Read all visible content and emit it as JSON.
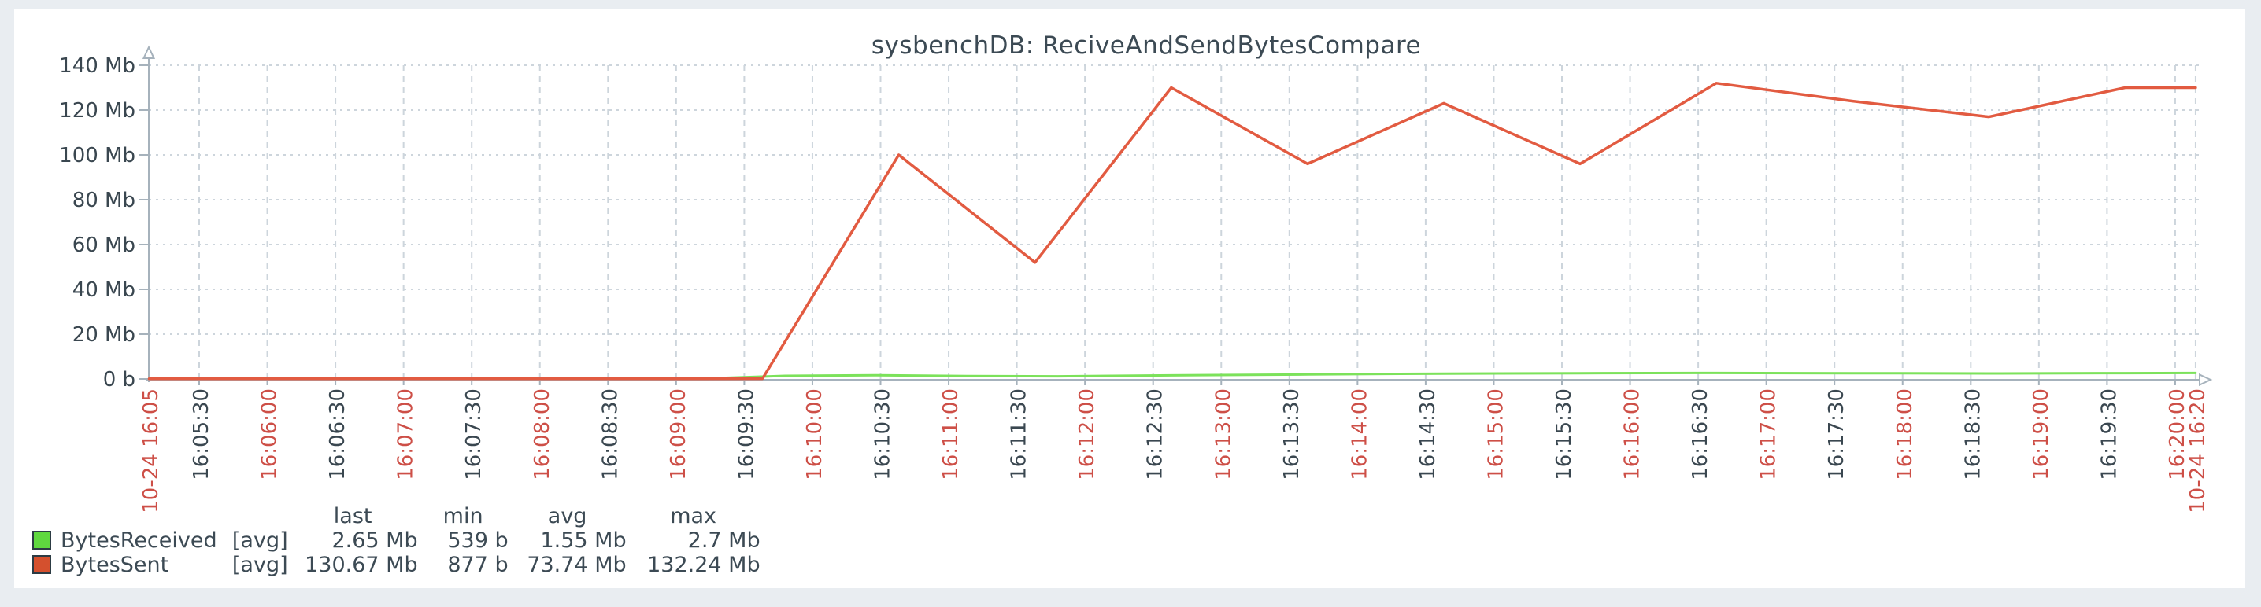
{
  "colors": {
    "page_bg": "#e9edf1",
    "panel_bg": "#ffffff",
    "grid": "#cdd5dc",
    "axis": "#a6b2bc",
    "tick_red": "#cd4f47",
    "tick_dark": "#3a4750",
    "text": "#3c4a54"
  },
  "chart_data": {
    "type": "line",
    "title": "sysbenchDB: ReciveAndSendBytesCompare",
    "ylabel": "",
    "xlabel": "",
    "unit": "Mb",
    "ylim": [
      0,
      140
    ],
    "y_tick_step": 20,
    "grid": true,
    "legend_position": "bottom-left",
    "y_ticks": [
      {
        "v": 140,
        "label": "140 Mb"
      },
      {
        "v": 120,
        "label": "120 Mb"
      },
      {
        "v": 100,
        "label": "100 Mb"
      },
      {
        "v": 80,
        "label": "80 Mb"
      },
      {
        "v": 60,
        "label": "60 Mb"
      },
      {
        "v": 40,
        "label": "40 Mb"
      },
      {
        "v": 20,
        "label": "20 Mb"
      },
      {
        "v": 0,
        "label": "0 b"
      }
    ],
    "x_axis": {
      "start_label": {
        "label": "10-24 16:05",
        "color": "red"
      },
      "end_label": {
        "label": "10-24 16:20",
        "color": "red",
        "t": 909
      },
      "ticks": [
        {
          "t": 30,
          "label": "16:05:30",
          "color": "dark"
        },
        {
          "t": 60,
          "label": "16:06:00",
          "color": "red"
        },
        {
          "t": 90,
          "label": "16:06:30",
          "color": "dark"
        },
        {
          "t": 120,
          "label": "16:07:00",
          "color": "red"
        },
        {
          "t": 150,
          "label": "16:07:30",
          "color": "dark"
        },
        {
          "t": 180,
          "label": "16:08:00",
          "color": "red"
        },
        {
          "t": 210,
          "label": "16:08:30",
          "color": "dark"
        },
        {
          "t": 240,
          "label": "16:09:00",
          "color": "red"
        },
        {
          "t": 270,
          "label": "16:09:30",
          "color": "dark"
        },
        {
          "t": 300,
          "label": "16:10:00",
          "color": "red"
        },
        {
          "t": 330,
          "label": "16:10:30",
          "color": "dark"
        },
        {
          "t": 360,
          "label": "16:11:00",
          "color": "red"
        },
        {
          "t": 390,
          "label": "16:11:30",
          "color": "dark"
        },
        {
          "t": 420,
          "label": "16:12:00",
          "color": "red"
        },
        {
          "t": 450,
          "label": "16:12:30",
          "color": "dark"
        },
        {
          "t": 480,
          "label": "16:13:00",
          "color": "red"
        },
        {
          "t": 510,
          "label": "16:13:30",
          "color": "dark"
        },
        {
          "t": 540,
          "label": "16:14:00",
          "color": "red"
        },
        {
          "t": 570,
          "label": "16:14:30",
          "color": "dark"
        },
        {
          "t": 600,
          "label": "16:15:00",
          "color": "red"
        },
        {
          "t": 630,
          "label": "16:15:30",
          "color": "dark"
        },
        {
          "t": 660,
          "label": "16:16:00",
          "color": "red"
        },
        {
          "t": 690,
          "label": "16:16:30",
          "color": "dark"
        },
        {
          "t": 720,
          "label": "16:17:00",
          "color": "red"
        },
        {
          "t": 750,
          "label": "16:17:30",
          "color": "dark"
        },
        {
          "t": 780,
          "label": "16:18:00",
          "color": "red"
        },
        {
          "t": 810,
          "label": "16:18:30",
          "color": "dark"
        },
        {
          "t": 840,
          "label": "16:19:00",
          "color": "red"
        },
        {
          "t": 870,
          "label": "16:19:30",
          "color": "dark"
        },
        {
          "t": 900,
          "label": "16:20:00",
          "color": "red"
        }
      ]
    },
    "legend_headers": [
      "last",
      "min",
      "avg",
      "max"
    ],
    "series": [
      {
        "name": "BytesReceived",
        "function": "[avg]",
        "line_color": "#7ce25b",
        "swatch_color": "#5fd83f",
        "stats": {
          "last": "2.65 Mb",
          "min": "539 b",
          "avg": "1.55 Mb",
          "max": "2.7 Mb"
        },
        "points": [
          [
            8,
            0.15
          ],
          [
            218,
            0.2
          ],
          [
            258,
            0.4
          ],
          [
            288,
            1.4
          ],
          [
            328,
            1.7
          ],
          [
            368,
            1.3
          ],
          [
            408,
            1.2
          ],
          [
            458,
            1.6
          ],
          [
            518,
            2.0
          ],
          [
            578,
            2.4
          ],
          [
            638,
            2.55
          ],
          [
            698,
            2.65
          ],
          [
            758,
            2.55
          ],
          [
            818,
            2.45
          ],
          [
            878,
            2.6
          ],
          [
            909,
            2.65
          ]
        ]
      },
      {
        "name": "BytesSent",
        "function": "[avg]",
        "line_color": "#e25b41",
        "swatch_color": "#d4502e",
        "stats": {
          "last": "130.67 Mb",
          "min": "877 b",
          "avg": "73.74 Mb",
          "max": "132.24 Mb"
        },
        "points": [
          [
            8,
            0.1
          ],
          [
            248,
            0.1
          ],
          [
            278,
            0.15
          ],
          [
            338,
            100
          ],
          [
            398,
            52
          ],
          [
            458,
            130
          ],
          [
            518,
            96
          ],
          [
            578,
            123
          ],
          [
            638,
            96
          ],
          [
            698,
            132
          ],
          [
            758,
            124
          ],
          [
            818,
            117
          ],
          [
            878,
            130
          ],
          [
            909,
            130
          ]
        ]
      }
    ]
  }
}
